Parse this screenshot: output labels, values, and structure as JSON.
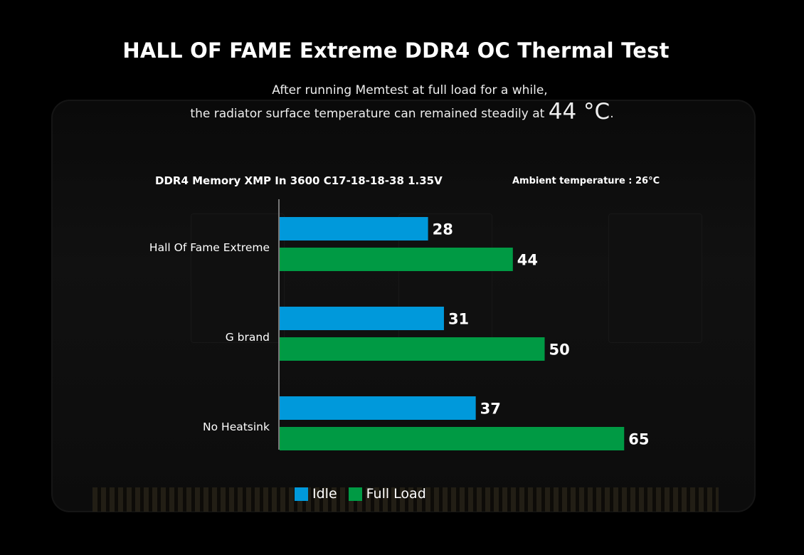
{
  "title": "HALL OF FAME Extreme DDR4 OC Thermal Test",
  "subtitle": {
    "line1": "After running Memtest at full load for a while,",
    "line2_prefix": "the radiator surface temperature can remained steadily at ",
    "highlight": "44 °C",
    "line2_suffix": "."
  },
  "config_label": "DDR4 Memory XMP In 3600 C17-18-18-38 1.35V",
  "ambient_label": "Ambient temperature : 26°C",
  "colors": {
    "idle": "#0099db",
    "full_load": "#009a44",
    "background": "#000000",
    "text": "#ffffff"
  },
  "chart_data": {
    "type": "bar",
    "orientation": "horizontal",
    "categories": [
      "Hall Of Fame Extreme",
      "G brand",
      "No Heatsink"
    ],
    "series": [
      {
        "name": "Idle",
        "values": [
          28,
          31,
          37
        ]
      },
      {
        "name": "Full Load",
        "values": [
          44,
          50,
          65
        ]
      }
    ],
    "xlim": [
      0,
      75
    ],
    "grid": false,
    "legend": "bottom",
    "data_labels": true
  }
}
